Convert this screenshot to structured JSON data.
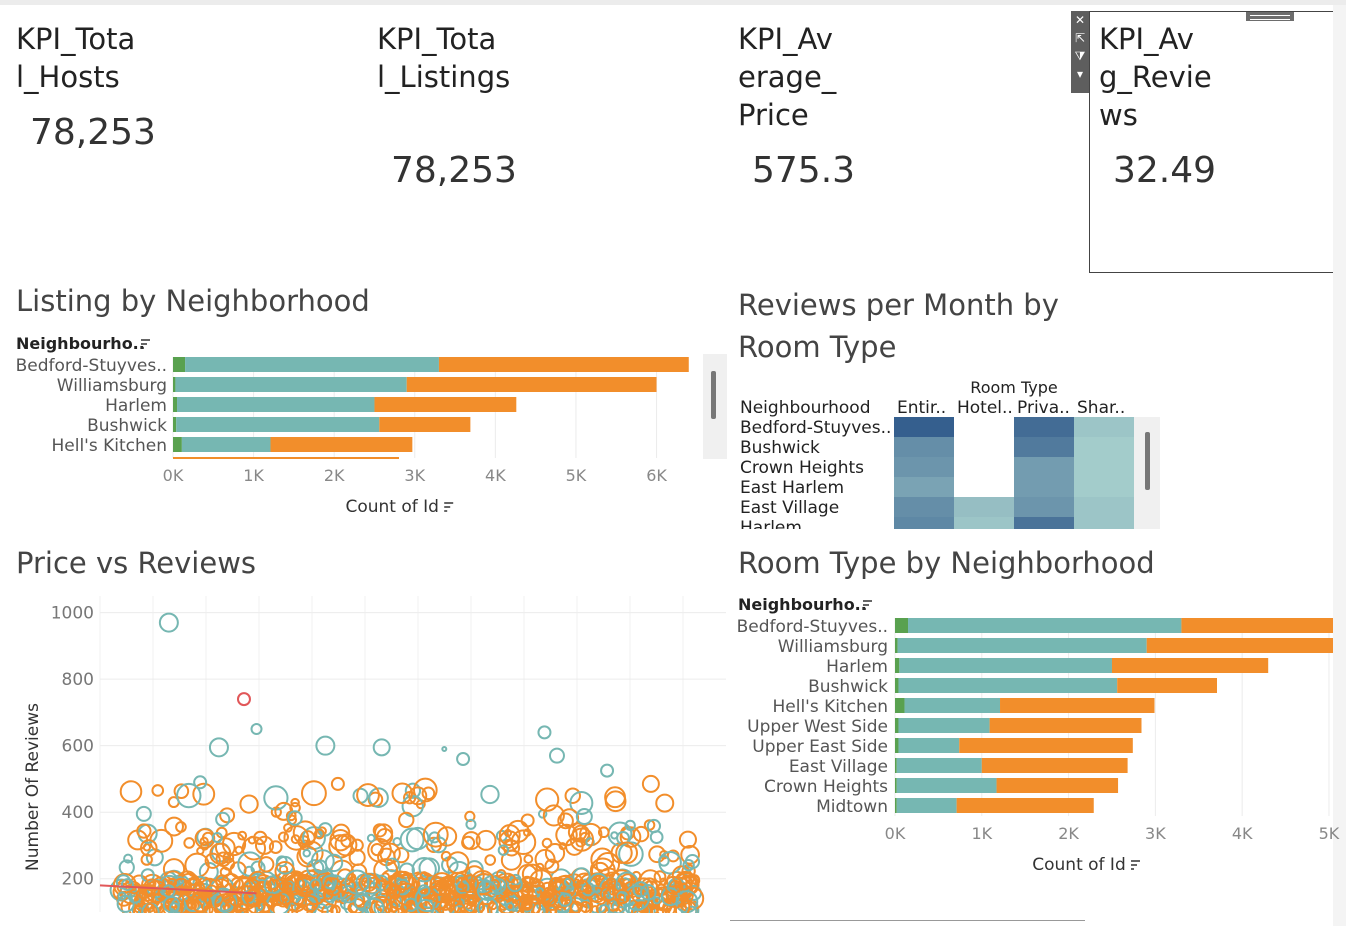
{
  "kpis": [
    {
      "title": "KPI_Tota\nl_Hosts",
      "value": "78,253"
    },
    {
      "title": "KPI_Tota\nl_Listings",
      "value": "78,253"
    },
    {
      "title": "KPI_Av\nerage_\nPrice",
      "value": "575.3"
    },
    {
      "title": "KPI_Av\ng_Revie\nws",
      "value": "32.49"
    }
  ],
  "toolbar_icons": [
    "close-icon",
    "popout-icon",
    "filter-icon",
    "menu-arrow-icon"
  ],
  "colors": {
    "green": "#59a14f",
    "teal": "#76b7b2",
    "orange": "#f28e2b",
    "red": "#e15759",
    "heat_dark": "#2f5f8a",
    "heat_mid": "#5fa8c0",
    "heat_light": "#b8e0d6"
  },
  "chart_data": [
    {
      "type": "bar",
      "title": "Listing by Neighborhood",
      "dimension_label": "Neighbourho..",
      "xlabel": "Count of Id",
      "ticks": [
        "0K",
        "1K",
        "2K",
        "3K",
        "4K",
        "5K",
        "6K"
      ],
      "xlim": [
        0,
        6800
      ],
      "categories": [
        "Bedford-Stuyves..",
        "Williamsburg",
        "Harlem",
        "Bushwick",
        "Hell's Kitchen"
      ],
      "series": [
        {
          "values": [
            150,
            30,
            50,
            40,
            110
          ]
        },
        {
          "values": [
            3150,
            2870,
            2450,
            2520,
            1100
          ]
        },
        {
          "values": [
            3100,
            3100,
            1760,
            1130,
            1760
          ]
        }
      ]
    },
    {
      "type": "heatmap",
      "title": "Reviews per Month by Room Type",
      "column_header": "Room Type",
      "row_header": "Neighbourhood",
      "columns": [
        "Entir..",
        "Hotel..",
        "Priva..",
        "Shar.."
      ],
      "rows": [
        "Bedford-Stuyves..",
        "Bushwick",
        "Crown Heights",
        "East Harlem",
        "East Village",
        "Harlem"
      ],
      "values": [
        [
          0.95,
          null,
          0.85,
          0.2
        ],
        [
          0.6,
          null,
          0.75,
          0.15
        ],
        [
          0.55,
          null,
          0.5,
          0.15
        ],
        [
          0.45,
          null,
          0.5,
          0.15
        ],
        [
          0.6,
          0.25,
          0.55,
          0.2
        ],
        [
          0.65,
          0.2,
          0.8,
          0.2
        ]
      ]
    },
    {
      "type": "scatter",
      "title": "Price vs Reviews",
      "ylabel": "Number Of Reviews",
      "xlabel": "",
      "yticks": [
        "200",
        "400",
        "600",
        "800",
        "1000"
      ],
      "ylim": [
        100,
        1050
      ],
      "xlim": [
        0,
        100
      ],
      "highlight_points": [
        {
          "x": 11,
          "y": 970,
          "r": 9,
          "c": "teal"
        },
        {
          "x": 23,
          "y": 740,
          "r": 6,
          "c": "red"
        },
        {
          "x": 25,
          "y": 650,
          "r": 5,
          "c": "teal"
        },
        {
          "x": 19,
          "y": 595,
          "r": 9,
          "c": "teal"
        },
        {
          "x": 36,
          "y": 600,
          "r": 9,
          "c": "teal"
        },
        {
          "x": 45,
          "y": 595,
          "r": 8,
          "c": "teal"
        },
        {
          "x": 55,
          "y": 590,
          "r": 2,
          "c": "teal"
        },
        {
          "x": 58,
          "y": 560,
          "r": 6,
          "c": "teal"
        },
        {
          "x": 71,
          "y": 640,
          "r": 6,
          "c": "teal"
        },
        {
          "x": 73,
          "y": 570,
          "r": 7,
          "c": "teal"
        },
        {
          "x": 81,
          "y": 525,
          "r": 6,
          "c": "teal"
        },
        {
          "x": 88,
          "y": 485,
          "r": 8,
          "c": "orange"
        },
        {
          "x": 16,
          "y": 490,
          "r": 6,
          "c": "teal"
        },
        {
          "x": 38,
          "y": 485,
          "r": 6,
          "c": "orange"
        },
        {
          "x": 7,
          "y": 395,
          "r": 7,
          "c": "teal"
        }
      ],
      "line": {
        "x": [
          0,
          25
        ],
        "y": [
          180,
          165
        ],
        "c": "red"
      }
    },
    {
      "type": "bar",
      "title": "Room Type by Neighborhood",
      "dimension_label": "Neighbourho..",
      "xlabel": "Count of Id",
      "ticks": [
        "0K",
        "1K",
        "2K",
        "3K",
        "4K",
        "5K"
      ],
      "xlim": [
        0,
        5300
      ],
      "categories": [
        "Bedford-Stuyves..",
        "Williamsburg",
        "Harlem",
        "Bushwick",
        "Hell's Kitchen",
        "Upper West Side",
        "Upper East Side",
        "East Village",
        "Crown Heights",
        "Midtown"
      ],
      "series": [
        {
          "values": [
            150,
            30,
            50,
            40,
            110,
            40,
            40,
            20,
            20,
            20
          ]
        },
        {
          "values": [
            3150,
            2870,
            2450,
            2520,
            1100,
            1050,
            700,
            980,
            1150,
            690
          ]
        },
        {
          "values": [
            2000,
            2500,
            1800,
            1150,
            1780,
            1750,
            2000,
            1680,
            1400,
            1580
          ]
        }
      ]
    }
  ]
}
